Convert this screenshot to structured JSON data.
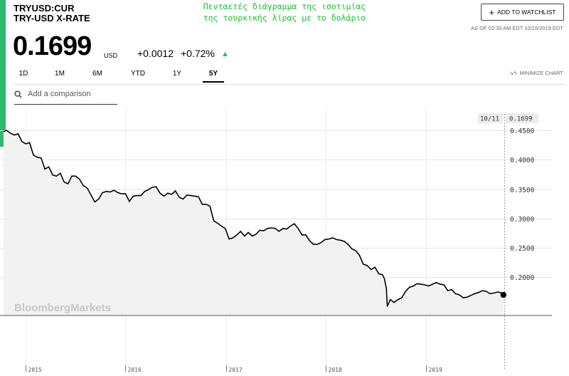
{
  "header": {
    "symbol": "TRYUSD:CUR",
    "name": "TRY-USD X-RATE",
    "caption_line1": "Πενταετές διάγραμμα της ισοτιμίας",
    "caption_line2": "της τουρκικής λίρας με το δολάριο",
    "price": "0.1699",
    "unit": "USD",
    "change_abs": "+0.0012",
    "change_pct": "+0.72%",
    "direction": "up"
  },
  "watchlist": {
    "label": "ADD TO WATCHLIST"
  },
  "as_of": "AS OF 02:33 AM EDT 10/15/2019 EDT",
  "ranges": [
    "1D",
    "1M",
    "6M",
    "YTD",
    "1Y",
    "5Y"
  ],
  "active_range": "5Y",
  "minimize_label": "MINIMIZE CHART",
  "compare": {
    "placeholder": "Add a comparison"
  },
  "watermark": "BloombergMarkets",
  "colors": {
    "accent": "#2fb872",
    "caption": "#13c22d",
    "line": "#000000",
    "area": "#f2f2f2"
  },
  "chart_data": {
    "type": "area",
    "y_ticks": [
      "0.4500",
      "0.4000",
      "0.3500",
      "0.3000",
      "0.2500",
      "0.2000"
    ],
    "ylim": [
      0.13,
      0.49
    ],
    "x_ticks": [
      "2015",
      "2016",
      "2017",
      "2018",
      "2019"
    ],
    "xlim": [
      "2014-10-13",
      "2019-10-14"
    ],
    "grid": true,
    "crosshair": {
      "date_label": "10/11",
      "value_label": "0.1699",
      "value": 0.1699
    },
    "points": [
      [
        "2014-10-13",
        0.4479
      ],
      [
        "2014-10-24",
        0.45
      ],
      [
        "2014-11-07",
        0.445
      ],
      [
        "2014-11-21",
        0.442
      ],
      [
        "2014-12-05",
        0.444
      ],
      [
        "2014-12-19",
        0.431
      ],
      [
        "2015-01-02",
        0.427
      ],
      [
        "2015-01-16",
        0.429
      ],
      [
        "2015-01-30",
        0.408
      ],
      [
        "2015-02-13",
        0.404
      ],
      [
        "2015-02-27",
        0.403
      ],
      [
        "2015-03-13",
        0.384
      ],
      [
        "2015-03-27",
        0.388
      ],
      [
        "2015-04-10",
        0.374
      ],
      [
        "2015-04-24",
        0.372
      ],
      [
        "2015-05-08",
        0.377
      ],
      [
        "2015-05-22",
        0.362
      ],
      [
        "2015-06-05",
        0.359
      ],
      [
        "2015-06-19",
        0.372
      ],
      [
        "2015-07-03",
        0.372
      ],
      [
        "2015-07-17",
        0.367
      ],
      [
        "2015-07-31",
        0.356
      ],
      [
        "2015-08-14",
        0.352
      ],
      [
        "2015-08-28",
        0.34
      ],
      [
        "2015-09-11",
        0.328
      ],
      [
        "2015-09-25",
        0.333
      ],
      [
        "2015-10-09",
        0.344
      ],
      [
        "2015-10-23",
        0.346
      ],
      [
        "2015-11-06",
        0.345
      ],
      [
        "2015-11-20",
        0.348
      ],
      [
        "2015-12-04",
        0.344
      ],
      [
        "2015-12-18",
        0.342
      ],
      [
        "2016-01-01",
        0.342
      ],
      [
        "2016-01-15",
        0.329
      ],
      [
        "2016-01-29",
        0.338
      ],
      [
        "2016-02-12",
        0.339
      ],
      [
        "2016-02-26",
        0.339
      ],
      [
        "2016-03-11",
        0.346
      ],
      [
        "2016-03-25",
        0.349
      ],
      [
        "2016-04-08",
        0.353
      ],
      [
        "2016-04-22",
        0.354
      ],
      [
        "2016-05-06",
        0.343
      ],
      [
        "2016-05-20",
        0.338
      ],
      [
        "2016-06-03",
        0.343
      ],
      [
        "2016-06-17",
        0.341
      ],
      [
        "2016-07-01",
        0.347
      ],
      [
        "2016-07-15",
        0.336
      ],
      [
        "2016-07-29",
        0.333
      ],
      [
        "2016-08-12",
        0.34
      ],
      [
        "2016-08-26",
        0.339
      ],
      [
        "2016-09-09",
        0.338
      ],
      [
        "2016-09-23",
        0.337
      ],
      [
        "2016-10-07",
        0.324
      ],
      [
        "2016-10-21",
        0.324
      ],
      [
        "2016-11-04",
        0.321
      ],
      [
        "2016-11-18",
        0.296
      ],
      [
        "2016-12-02",
        0.292
      ],
      [
        "2016-12-16",
        0.287
      ],
      [
        "2016-12-30",
        0.283
      ],
      [
        "2017-01-13",
        0.265
      ],
      [
        "2017-01-27",
        0.267
      ],
      [
        "2017-02-10",
        0.272
      ],
      [
        "2017-02-24",
        0.278
      ],
      [
        "2017-03-10",
        0.27
      ],
      [
        "2017-03-24",
        0.276
      ],
      [
        "2017-04-07",
        0.27
      ],
      [
        "2017-04-21",
        0.273
      ],
      [
        "2017-05-05",
        0.28
      ],
      [
        "2017-05-19",
        0.279
      ],
      [
        "2017-06-02",
        0.283
      ],
      [
        "2017-06-16",
        0.284
      ],
      [
        "2017-06-30",
        0.283
      ],
      [
        "2017-07-14",
        0.278
      ],
      [
        "2017-07-28",
        0.283
      ],
      [
        "2017-08-11",
        0.282
      ],
      [
        "2017-08-25",
        0.287
      ],
      [
        "2017-09-08",
        0.291
      ],
      [
        "2017-09-22",
        0.283
      ],
      [
        "2017-10-06",
        0.272
      ],
      [
        "2017-10-20",
        0.272
      ],
      [
        "2017-11-03",
        0.262
      ],
      [
        "2017-11-17",
        0.256
      ],
      [
        "2017-12-01",
        0.256
      ],
      [
        "2017-12-15",
        0.259
      ],
      [
        "2017-12-29",
        0.264
      ],
      [
        "2018-01-12",
        0.265
      ],
      [
        "2018-01-26",
        0.267
      ],
      [
        "2018-02-09",
        0.264
      ],
      [
        "2018-02-23",
        0.263
      ],
      [
        "2018-03-09",
        0.261
      ],
      [
        "2018-03-23",
        0.256
      ],
      [
        "2018-04-06",
        0.248
      ],
      [
        "2018-04-20",
        0.245
      ],
      [
        "2018-05-04",
        0.237
      ],
      [
        "2018-05-18",
        0.222
      ],
      [
        "2018-06-01",
        0.22
      ],
      [
        "2018-06-15",
        0.213
      ],
      [
        "2018-06-29",
        0.217
      ],
      [
        "2018-07-13",
        0.206
      ],
      [
        "2018-07-27",
        0.204
      ],
      [
        "2018-08-03",
        0.197
      ],
      [
        "2018-08-10",
        0.18
      ],
      [
        "2018-08-13",
        0.15
      ],
      [
        "2018-08-24",
        0.162
      ],
      [
        "2018-09-07",
        0.157
      ],
      [
        "2018-09-21",
        0.162
      ],
      [
        "2018-10-05",
        0.165
      ],
      [
        "2018-10-19",
        0.176
      ],
      [
        "2018-11-02",
        0.183
      ],
      [
        "2018-11-16",
        0.185
      ],
      [
        "2018-11-30",
        0.189
      ],
      [
        "2018-12-14",
        0.188
      ],
      [
        "2018-12-28",
        0.187
      ],
      [
        "2019-01-11",
        0.185
      ],
      [
        "2019-01-25",
        0.188
      ],
      [
        "2019-02-08",
        0.191
      ],
      [
        "2019-02-22",
        0.188
      ],
      [
        "2019-03-08",
        0.187
      ],
      [
        "2019-03-22",
        0.177
      ],
      [
        "2019-04-05",
        0.179
      ],
      [
        "2019-04-19",
        0.172
      ],
      [
        "2019-05-03",
        0.17
      ],
      [
        "2019-05-17",
        0.165
      ],
      [
        "2019-05-31",
        0.166
      ],
      [
        "2019-06-14",
        0.169
      ],
      [
        "2019-06-28",
        0.172
      ],
      [
        "2019-07-12",
        0.174
      ],
      [
        "2019-07-26",
        0.177
      ],
      [
        "2019-08-09",
        0.176
      ],
      [
        "2019-08-23",
        0.172
      ],
      [
        "2019-09-06",
        0.173
      ],
      [
        "2019-09-20",
        0.175
      ],
      [
        "2019-10-04",
        0.173
      ],
      [
        "2019-10-11",
        0.1699
      ]
    ]
  }
}
